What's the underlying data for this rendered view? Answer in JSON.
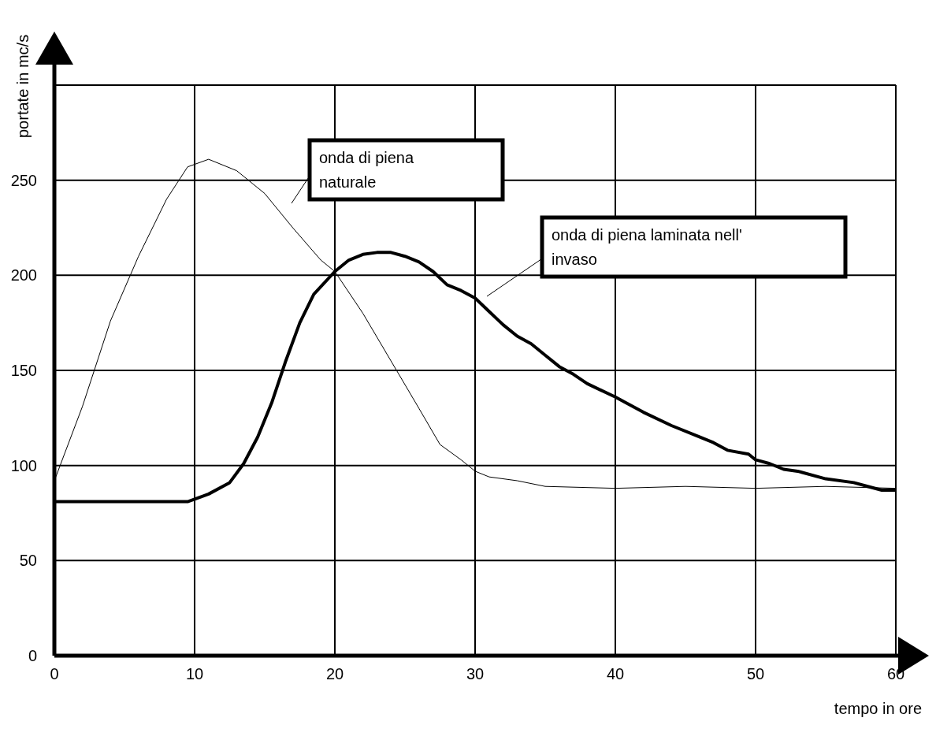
{
  "chart_data": {
    "type": "line",
    "xlabel": "tempo in ore",
    "ylabel": "portate in mc/s",
    "xlim": [
      0,
      60
    ],
    "xticks": [
      0,
      10,
      20,
      30,
      40,
      50,
      60
    ],
    "ylim": [
      0,
      300
    ],
    "yticks": [
      0,
      50,
      100,
      150,
      200,
      250,
      {
        "value": 300,
        "label": null
      }
    ],
    "grid": true,
    "legend": false,
    "marker": "none",
    "line_style": "solid",
    "series": [
      {
        "color": "#000000",
        "x": [
          0,
          2,
          4,
          6,
          8,
          9.5,
          11,
          13,
          15,
          17,
          19,
          20,
          22,
          24,
          26,
          27.5,
          29,
          30,
          31,
          33,
          35,
          40,
          45,
          50,
          55,
          60
        ],
        "values": [
          92,
          131,
          176,
          210,
          240,
          257,
          261,
          255,
          243,
          225,
          208,
          202,
          180,
          155,
          130,
          111,
          103,
          97,
          94,
          92,
          89,
          88,
          89,
          88,
          89,
          88
        ]
      },
      {
        "color": "#000000",
        "x": [
          0,
          9.5,
          11,
          12.5,
          13.5,
          14.5,
          15.5,
          16.5,
          17.5,
          18.5,
          20,
          21,
          22,
          23,
          24,
          25,
          26,
          27,
          28,
          29,
          30,
          31,
          32,
          33,
          34,
          35,
          36,
          37,
          38,
          40,
          42,
          44,
          46,
          47,
          48,
          49.5,
          50,
          51,
          52,
          53,
          55,
          57,
          58,
          59,
          60
        ],
        "values": [
          81,
          81,
          85,
          91,
          101,
          115,
          133,
          155,
          175,
          190,
          202,
          208,
          211,
          212,
          212,
          210,
          207,
          202,
          195,
          192,
          188,
          181,
          174,
          168,
          164,
          158,
          152,
          148,
          143,
          136,
          128,
          121,
          115,
          112,
          108,
          106,
          103,
          101,
          98,
          97,
          93,
          91,
          89,
          87,
          87
        ]
      }
    ],
    "annotations": [
      "onda di piena\nnaturale",
      "onda di piena laminata nell'\ninvaso"
    ]
  }
}
